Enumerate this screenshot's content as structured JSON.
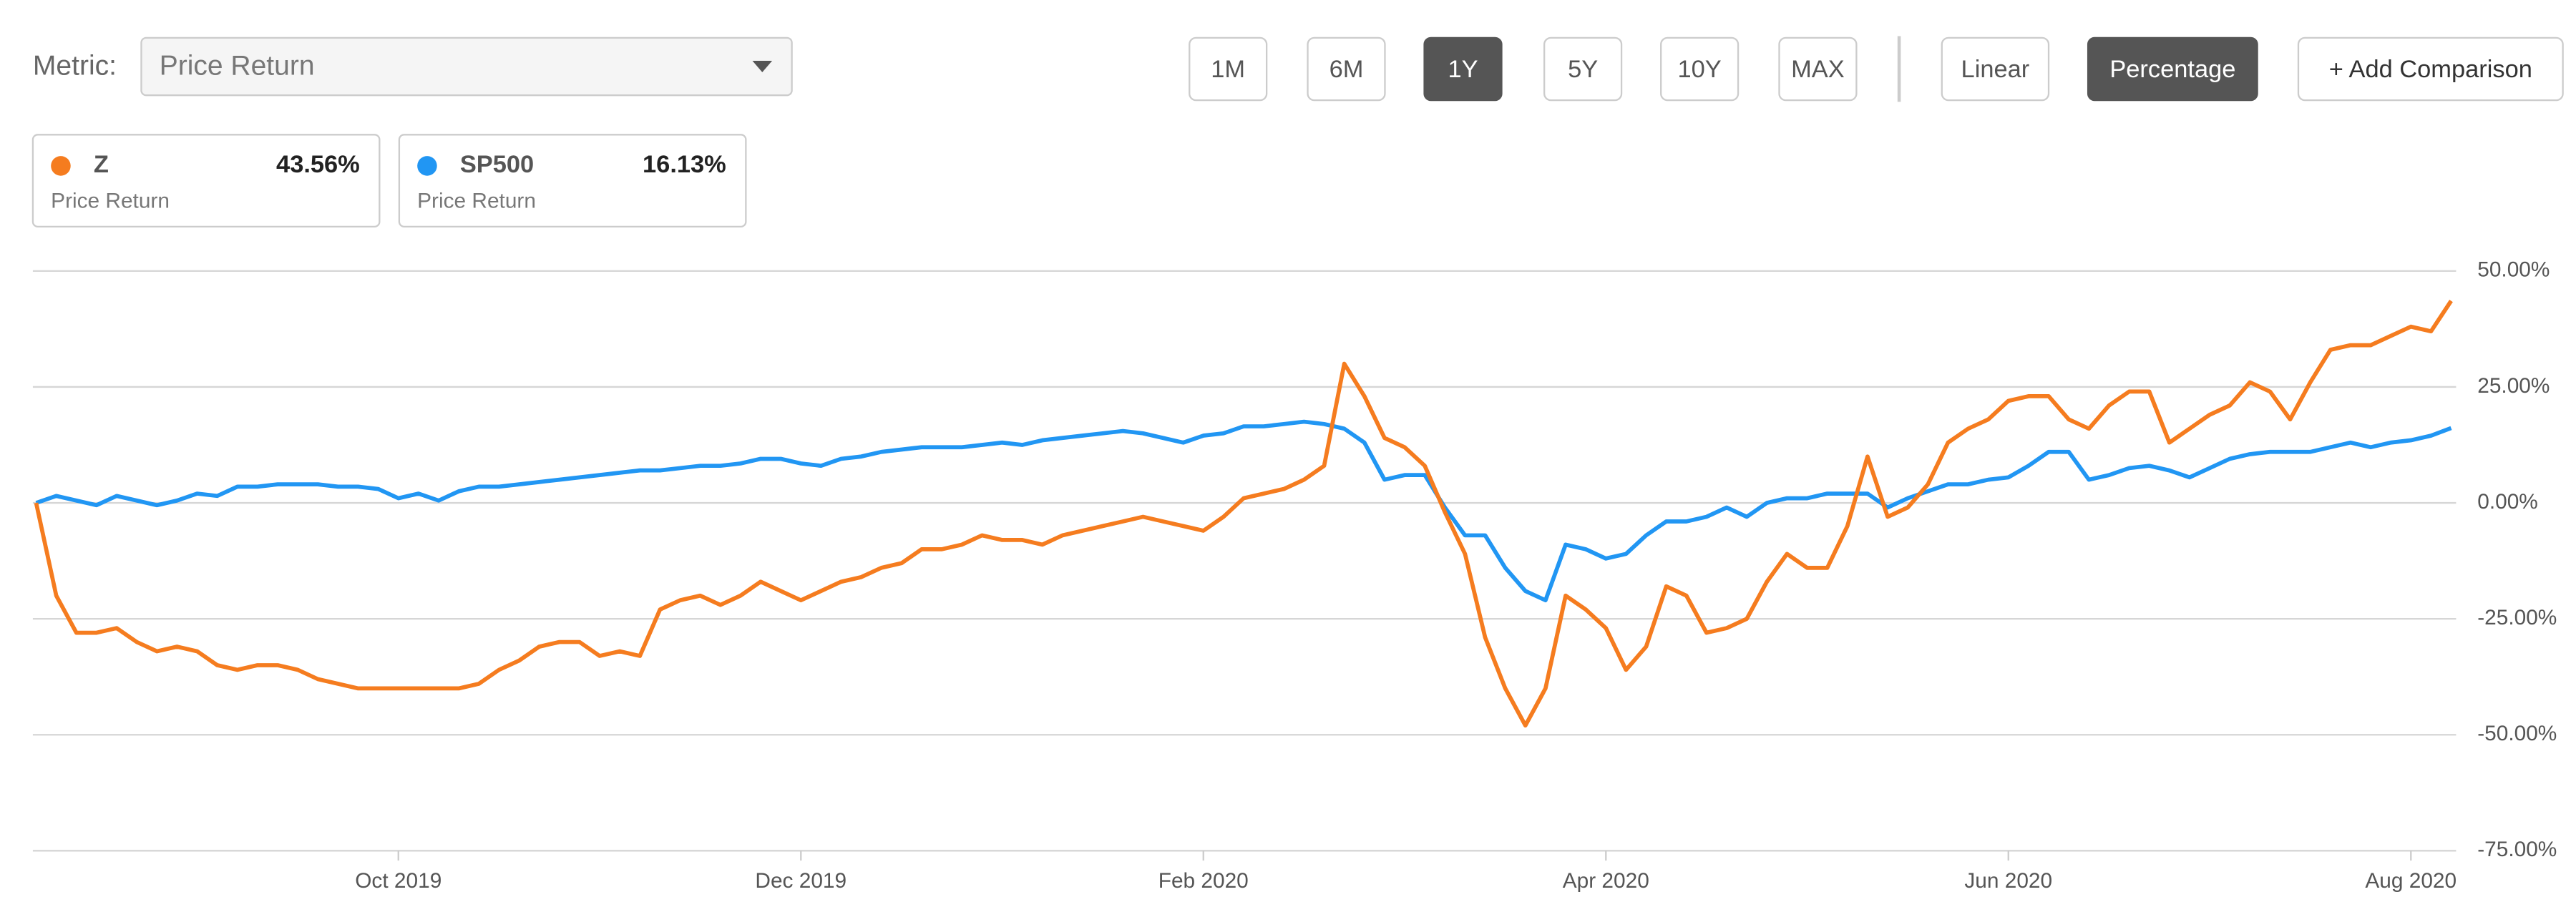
{
  "controls": {
    "metric_label": "Metric:",
    "metric": "Price Return",
    "ranges": [
      "1M",
      "6M",
      "1Y",
      "5Y",
      "10Y",
      "MAX"
    ],
    "active_range": "1Y",
    "scales": [
      "Linear",
      "Percentage"
    ],
    "active_scale": "Percentage",
    "add": "+ Add Comparison"
  },
  "chart_data": {
    "type": "line",
    "categories": [
      null,
      null,
      null,
      null,
      null,
      null,
      null,
      null,
      null,
      null,
      null,
      null,
      null,
      null,
      null,
      null,
      null,
      null,
      "Oct 2019",
      null,
      null,
      null,
      null,
      null,
      null,
      null,
      null,
      null,
      null,
      null,
      null,
      null,
      null,
      null,
      null,
      null,
      null,
      null,
      "Dec 2019",
      null,
      null,
      null,
      null,
      null,
      null,
      null,
      null,
      null,
      null,
      null,
      null,
      null,
      null,
      null,
      null,
      null,
      null,
      null,
      "Feb 2020",
      null,
      null,
      null,
      null,
      null,
      null,
      null,
      null,
      null,
      null,
      null,
      null,
      null,
      null,
      null,
      null,
      null,
      null,
      null,
      "Apr 2020",
      null,
      null,
      null,
      null,
      null,
      null,
      null,
      null,
      null,
      null,
      null,
      null,
      null,
      null,
      null,
      null,
      null,
      null,
      null,
      "Jun 2020",
      null,
      null,
      null,
      null,
      null,
      null,
      null,
      null,
      null,
      null,
      null,
      null,
      null,
      null,
      null,
      null,
      null,
      null,
      null,
      "Aug 2020",
      null,
      null
    ],
    "series": [
      {
        "name": "Z",
        "color": "#f57c1f",
        "summary": "43.56%",
        "values": [
          0,
          -20,
          -28,
          -28,
          -27,
          -30,
          -32,
          -31,
          -32,
          -35,
          -36,
          -35,
          -35,
          -36,
          -38,
          -39,
          -40,
          -40,
          -40,
          -40,
          -40,
          -40,
          -39,
          -36,
          -34,
          -31,
          -30,
          -30,
          -33,
          -32,
          -33,
          -23,
          -21,
          -20,
          -22,
          -20,
          -17,
          -19,
          -21,
          -19,
          -17,
          -16,
          -14,
          -13,
          -10,
          -10,
          -9,
          -7,
          -8,
          -8,
          -9,
          -7,
          -6,
          -5,
          -4,
          -3,
          -4,
          -5,
          -6,
          -3,
          1,
          2,
          3,
          5,
          8,
          30,
          23,
          14,
          12,
          8,
          -2,
          -11,
          -29,
          -40,
          -48,
          -40,
          -20,
          -23,
          -27,
          -36,
          -31,
          -18,
          -20,
          -28,
          -27,
          -25,
          -17,
          -11,
          -14,
          -14,
          -5,
          10,
          -3,
          -1,
          4,
          13,
          16,
          18,
          22,
          23,
          23,
          18,
          16,
          21,
          24,
          24,
          13,
          16,
          19,
          21,
          26,
          24,
          18,
          26,
          33,
          34,
          34,
          36,
          38,
          37,
          43.56
        ]
      },
      {
        "name": "SP500",
        "color": "#2196f3",
        "summary": "16.13%",
        "values": [
          0,
          1.5,
          0.5,
          -0.5,
          1.5,
          0.5,
          -0.5,
          0.5,
          2,
          1.5,
          3.5,
          3.5,
          4,
          4,
          4,
          3.5,
          3.5,
          3,
          1,
          2,
          0.5,
          2.5,
          3.5,
          3.5,
          4,
          4.5,
          5,
          5.5,
          6,
          6.5,
          7,
          7,
          7.5,
          8,
          8,
          8.5,
          9.5,
          9.5,
          8.5,
          8,
          9.5,
          10,
          11,
          11.5,
          12,
          12,
          12,
          12.5,
          13,
          12.5,
          13.5,
          14,
          14.5,
          15,
          15.5,
          15,
          14,
          13,
          14.5,
          15,
          16.5,
          16.5,
          17,
          17.5,
          17,
          16,
          13,
          5,
          6,
          6,
          -1,
          -7,
          -7,
          -14,
          -19,
          -21,
          -9,
          -10,
          -12,
          -11,
          -7,
          -4,
          -4,
          -3,
          -1,
          -3,
          0,
          1,
          1,
          2,
          2,
          2,
          -1,
          1,
          2.5,
          4,
          4,
          5,
          5.5,
          8,
          11,
          11,
          5,
          6,
          7.5,
          8,
          7,
          5.5,
          7.5,
          9.5,
          10.5,
          11,
          11,
          11,
          12,
          13,
          12,
          13,
          13.5,
          14.5,
          16.13
        ]
      }
    ],
    "ylim": [
      -75,
      50
    ],
    "yticks": [
      {
        "value": 50,
        "label": "50.00%"
      },
      {
        "value": 25,
        "label": "25.00%"
      },
      {
        "value": 0,
        "label": "0.00%"
      },
      {
        "value": -25,
        "label": "-25.00%"
      },
      {
        "value": -50,
        "label": "-50.00%"
      },
      {
        "value": -75,
        "label": "-75.00%"
      }
    ],
    "grid": true
  }
}
